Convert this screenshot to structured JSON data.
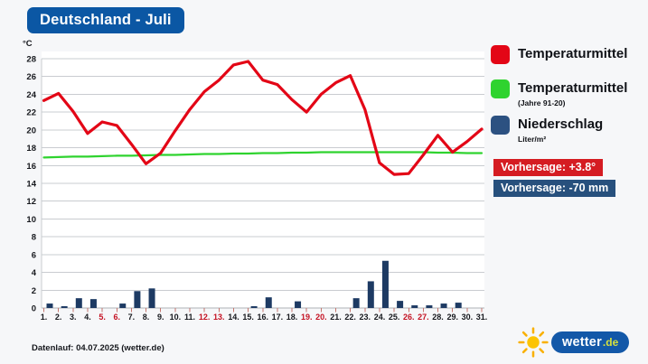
{
  "title": "Deutschland - Juli",
  "y_axis_unit": "°C",
  "chart_data": {
    "type": "line+bar",
    "title": "Deutschland - Juli",
    "ylabel": "°C",
    "ylim": [
      0,
      28
    ],
    "ytick_step": 2,
    "grid": true,
    "x": [
      1,
      2,
      3,
      4,
      5,
      6,
      7,
      8,
      9,
      10,
      11,
      12,
      13,
      14,
      15,
      16,
      17,
      18,
      19,
      20,
      21,
      22,
      23,
      24,
      25,
      26,
      27,
      28,
      29,
      30,
      31
    ],
    "x_tick_labels": [
      "1.",
      "2.",
      "3.",
      "4.",
      "5.",
      "6.",
      "7.",
      "8.",
      "9.",
      "10.",
      "11.",
      "12.",
      "13.",
      "14.",
      "15.",
      "16.",
      "17.",
      "18.",
      "19.",
      "20.",
      "21.",
      "22.",
      "23.",
      "24.",
      "25.",
      "26.",
      "27.",
      "28.",
      "29.",
      "30.",
      "31."
    ],
    "weekend_days": [
      5,
      6,
      12,
      13,
      19,
      20,
      26,
      27
    ],
    "label_color": "#16181d",
    "weekend_label_color": "#c41122",
    "tick_color": "#c4766e",
    "gridline_color": "#c9ccd0",
    "series": [
      {
        "name": "Temperaturmittel",
        "type": "line",
        "color": "#e30616",
        "values": [
          23.3,
          24.1,
          22.1,
          19.6,
          20.9,
          20.5,
          18.4,
          16.2,
          17.4,
          19.9,
          22.3,
          24.3,
          25.6,
          27.3,
          27.7,
          25.6,
          25.1,
          23.4,
          22.0,
          24.0,
          25.3,
          26.1,
          22.3,
          16.3,
          15.0,
          15.1,
          17.2,
          19.4,
          17.5,
          18.7,
          20.1
        ]
      },
      {
        "name": "Temperaturmittel (Jahre 91-20)",
        "type": "line",
        "color": "#2fd32f",
        "values": [
          16.9,
          16.95,
          17.0,
          17.0,
          17.05,
          17.1,
          17.1,
          17.15,
          17.2,
          17.2,
          17.25,
          17.3,
          17.3,
          17.35,
          17.35,
          17.4,
          17.4,
          17.45,
          17.45,
          17.5,
          17.5,
          17.5,
          17.5,
          17.5,
          17.5,
          17.5,
          17.5,
          17.45,
          17.45,
          17.4,
          17.4
        ]
      },
      {
        "name": "Niederschlag (Liter/m²)",
        "type": "bar",
        "color": "#1d3a63",
        "values": [
          0.5,
          0.2,
          1.1,
          1.0,
          0,
          0.5,
          1.9,
          2.2,
          0,
          0,
          0,
          0,
          0,
          0,
          0.2,
          1.2,
          0,
          0.75,
          0,
          0,
          0,
          1.1,
          3.0,
          5.3,
          0.8,
          0.3,
          0.3,
          0.5,
          0.6,
          0,
          0
        ]
      }
    ],
    "legend_position": "right"
  },
  "legend": {
    "items": [
      {
        "label": "Temperaturmittel",
        "sub": "",
        "color": "#e30616"
      },
      {
        "label": "Temperaturmittel",
        "sub": "(Jahre 91-20)",
        "color": "#2fd32f"
      },
      {
        "label": "Niederschlag",
        "sub": "Liter/m²",
        "color": "#2c5181"
      }
    ]
  },
  "badges": [
    {
      "text": "Vorhersage: +3.8°",
      "bg": "#d51c22"
    },
    {
      "text": "Vorhersage: -70 mm",
      "bg": "#27507d"
    }
  ],
  "footer": {
    "text": "Datenlauf: 04.07.2025 (wetter.de)"
  },
  "logo": {
    "name": "wetter",
    "tld": ".de"
  }
}
